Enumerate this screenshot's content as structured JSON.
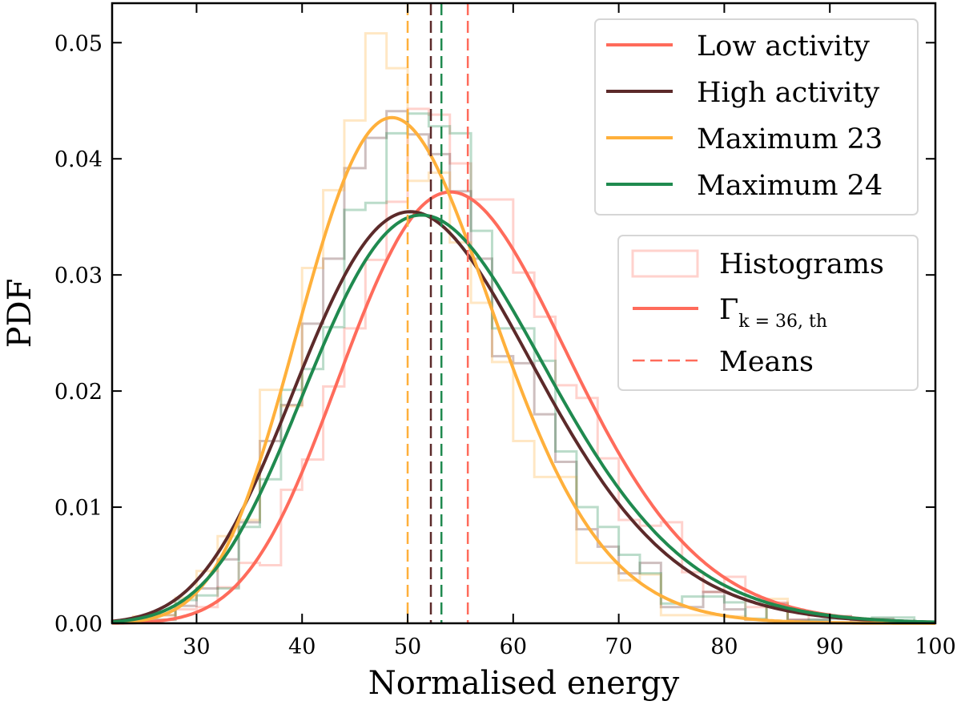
{
  "chart_data": {
    "type": "line",
    "xlabel": "Normalised energy",
    "ylabel": "PDF",
    "xlim": [
      22,
      100
    ],
    "ylim": [
      0,
      0.0534
    ],
    "x_ticks": [
      "30",
      "40",
      "50",
      "60",
      "70",
      "80",
      "90",
      "100"
    ],
    "x_tick_values": [
      30,
      40,
      50,
      60,
      70,
      80,
      90,
      100
    ],
    "y_ticks": [
      "0.00",
      "0.01",
      "0.02",
      "0.03",
      "0.04",
      "0.05"
    ],
    "y_tick_values": [
      0,
      0.01,
      0.02,
      0.03,
      0.04,
      0.05
    ],
    "grid": false,
    "histogram_bin_edges_start": 22,
    "histogram_bin_width": 2,
    "series": [
      {
        "name": "Low activity",
        "color": "#ff6b5b",
        "mean": 55.7,
        "gamma_fit": {
          "shape": 26.5,
          "scale": 2.12
        },
        "histogram": [
          0.0001,
          0.0002,
          0.0003,
          0.0012,
          0.0014,
          0.0031,
          0.0052,
          0.005,
          0.0115,
          0.0141,
          0.0204,
          0.0254,
          0.0313,
          0.0363,
          0.0443,
          0.0438,
          0.0396,
          0.0365,
          0.0365,
          0.0302,
          0.0264,
          0.0205,
          0.0194,
          0.0142,
          0.0089,
          0.0084,
          0.0087,
          0.0044,
          0.0027,
          0.004,
          0.0014,
          0.0018,
          0.0003,
          0.0008,
          0.0006,
          0.0003,
          0.0002,
          0.0001
        ]
      },
      {
        "name": "High activity",
        "color": "#5c2a2a",
        "mean": 52.2,
        "gamma_fit": {
          "shape": 21.1,
          "scale": 2.5
        },
        "histogram": [
          0.0002,
          0.0005,
          0.0007,
          0.0015,
          0.003,
          0.0055,
          0.0087,
          0.0157,
          0.0188,
          0.0258,
          0.0314,
          0.0392,
          0.0418,
          0.0441,
          0.0421,
          0.0404,
          0.0372,
          0.0314,
          0.023,
          0.0224,
          0.018,
          0.0139,
          0.0081,
          0.0066,
          0.0043,
          0.0052,
          0.0014,
          0.0014,
          0.0027,
          0.0012,
          0.0003,
          0.0017,
          0.0003,
          0.0003,
          0.0006,
          0.0002,
          0.0004,
          0.0002
        ]
      },
      {
        "name": "Maximum 23",
        "color": "#ffb03b",
        "mean": 50.0,
        "gamma_fit": {
          "shape": 29.2,
          "scale": 1.72
        },
        "histogram": [
          0.0002,
          0.0006,
          0.0007,
          0.0022,
          0.0045,
          0.0075,
          0.0089,
          0.0201,
          0.0187,
          0.0306,
          0.0373,
          0.0433,
          0.0508,
          0.0478,
          0.0381,
          0.0388,
          0.0328,
          0.0276,
          0.0225,
          0.0157,
          0.0126,
          0.0126,
          0.0052,
          0.0052,
          0.0037,
          0.0042,
          0.0007,
          0.0007,
          0.0007,
          0.0006,
          0.0003,
          0.0021,
          0.0001,
          0.0001,
          0.0001,
          0.0,
          0.0,
          0.0
        ]
      },
      {
        "name": "Maximum 24",
        "color": "#1f8a4f",
        "mean": 53.2,
        "gamma_fit": {
          "shape": 21.6,
          "scale": 2.49
        },
        "histogram": [
          0.0002,
          0.0002,
          0.0003,
          0.002,
          0.0024,
          0.003,
          0.0083,
          0.0124,
          0.0201,
          0.0219,
          0.0255,
          0.0356,
          0.0362,
          0.0422,
          0.0439,
          0.0428,
          0.0422,
          0.0338,
          0.0254,
          0.0254,
          0.0226,
          0.0148,
          0.01,
          0.0083,
          0.0059,
          0.0043,
          0.0017,
          0.0023,
          0.0023,
          0.0018,
          0.0004,
          0.0015,
          0.0002,
          0.0003,
          0.0004,
          0.0004,
          0.0005,
          0.0005
        ]
      }
    ],
    "legend_series_placement": "top-right",
    "legend_style_placement": "right",
    "legend_style": {
      "histograms_label": "Histograms",
      "gamma_label_main": "Γ",
      "gamma_label_sub": "k = 36, th",
      "means_label": "Means",
      "color": "#ff6b5b"
    }
  }
}
